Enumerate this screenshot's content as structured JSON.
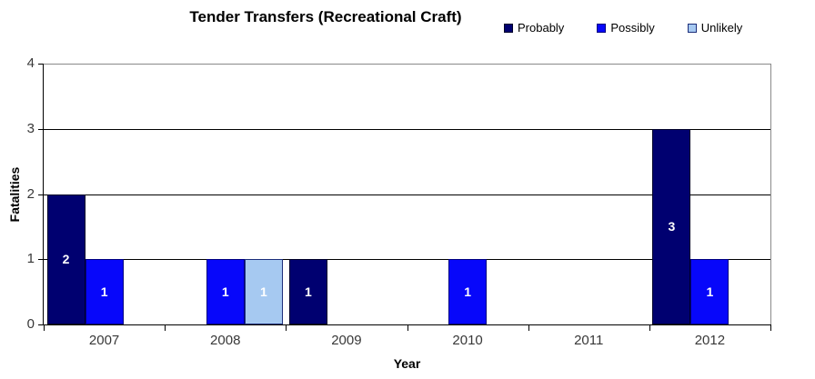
{
  "chart_data": {
    "type": "bar",
    "title": "Tender Transfers (Recreational Craft)",
    "xlabel": "Year",
    "ylabel": "Fatalities",
    "ylim": [
      0,
      4
    ],
    "yticks": [
      0,
      1,
      2,
      3,
      4
    ],
    "categories": [
      "2007",
      "2008",
      "2009",
      "2010",
      "2011",
      "2012"
    ],
    "series": [
      {
        "name": "Probably",
        "color": "#000070",
        "border": "#000028",
        "values": [
          2,
          0,
          1,
          0,
          0,
          3
        ]
      },
      {
        "name": "Possibly",
        "color": "#0707FA",
        "border": "#000080",
        "values": [
          1,
          1,
          0,
          1,
          0,
          1
        ]
      },
      {
        "name": "Unlikely",
        "color": "#A6C9F1",
        "border": "#1c2e7a",
        "values": [
          0,
          1,
          0,
          0,
          0,
          0
        ]
      }
    ],
    "bar_labels_shown": true,
    "legend_position": "top-right",
    "grid": "horizontal",
    "gridline_color": "#000000",
    "plot_border_color": "#8a8a8a",
    "axis_color": "#000000"
  }
}
